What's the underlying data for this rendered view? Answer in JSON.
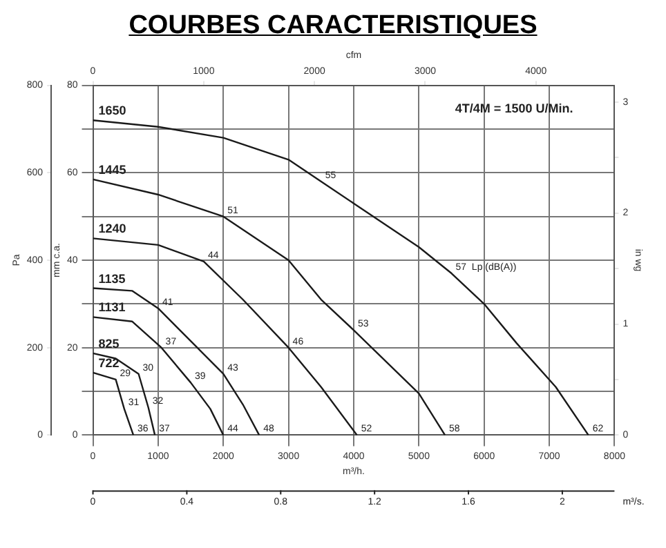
{
  "chart_data": {
    "type": "line",
    "title": "COURBES CARACTERISTIQUES",
    "xlabel": "m³/h.",
    "ylabel": "mm c.a.",
    "y2label": "Pa",
    "y3label": "in wg",
    "x2label": "cfm",
    "xlim": [
      0,
      8000
    ],
    "xticks": [
      0,
      1000,
      2000,
      3000,
      4000,
      5000,
      6000,
      7000,
      8000
    ],
    "ylim": [
      0,
      80
    ],
    "yticks": [
      0,
      {
        "value": 10,
        "label": null
      },
      20,
      {
        "value": 30,
        "label": null
      },
      40,
      {
        "value": 50,
        "label": null
      },
      60,
      {
        "value": 70,
        "label": null
      },
      80
    ],
    "y2lim": [
      0,
      800
    ],
    "y2ticks": [
      0,
      200,
      400,
      600,
      800
    ],
    "y3lim": [
      0,
      3.15
    ],
    "y3ticks": [
      0,
      {
        "value": 0.5,
        "label": null
      },
      1,
      {
        "value": 1.5,
        "label": null
      },
      2,
      {
        "value": 2.5,
        "label": null
      },
      3
    ],
    "x2lim": [
      0,
      4709
    ],
    "x2ticks": [
      0,
      1000,
      2000,
      3000,
      4000
    ],
    "grid": true,
    "legend": false,
    "marker": "none",
    "line_style": "solid",
    "series": [
      {
        "name": "1650",
        "color": "#1a1a1a",
        "x": [
          0,
          1000,
          2000,
          3000,
          3500,
          4000,
          5000,
          5500,
          6000,
          6500,
          7100,
          7600
        ],
        "values": [
          72,
          70.5,
          68,
          63,
          58,
          53,
          43,
          37,
          30,
          21,
          11,
          0
        ]
      },
      {
        "name": "1445",
        "color": "#1a1a1a",
        "x": [
          0,
          1000,
          2000,
          3000,
          3500,
          4000,
          5000,
          5400
        ],
        "values": [
          58.5,
          55,
          50,
          40,
          31,
          24,
          9.5,
          0
        ]
      },
      {
        "name": "1240",
        "color": "#1a1a1a",
        "x": [
          0,
          1000,
          1700,
          2300,
          3000,
          3500,
          4050
        ],
        "values": [
          45,
          43.5,
          39.7,
          31,
          20,
          11,
          0
        ]
      },
      {
        "name": "1135",
        "color": "#1a1a1a",
        "x": [
          0,
          600,
          1000,
          1600,
          2000,
          2300,
          2550
        ],
        "values": [
          33.6,
          33,
          29,
          20,
          14,
          7,
          0
        ]
      },
      {
        "name": "1131",
        "color": "#1a1a1a",
        "x": [
          0,
          600,
          1050,
          1500,
          1800,
          2000
        ],
        "values": [
          27,
          26,
          20,
          12,
          6,
          0
        ]
      },
      {
        "name": "825",
        "color": "#1a1a1a",
        "x": [
          0,
          350,
          700,
          850,
          950
        ],
        "values": [
          18.7,
          17.5,
          14,
          6.3,
          0
        ]
      },
      {
        "name": "722",
        "color": "#1a1a1a",
        "x": [
          0,
          350,
          480,
          620
        ],
        "values": [
          14.3,
          12.7,
          6,
          0
        ]
      }
    ],
    "annotations": [
      "4T/4M = 1500 U/Min.",
      "0",
      "0.4",
      "0.8",
      "1.2",
      "1.6",
      "2",
      "m³/s.",
      {
        "text": "55",
        "x": 3500,
        "y": 58
      },
      {
        "text": "57  Lp (dB(A))",
        "x": 5500,
        "y": 37
      },
      {
        "text": "62",
        "x": 7600,
        "y": 0
      },
      {
        "text": "51",
        "x": 2000,
        "y": 50
      },
      {
        "text": "53",
        "x": 4000,
        "y": 24
      },
      {
        "text": "58",
        "x": 5400,
        "y": 0
      },
      {
        "text": "44",
        "x": 1700,
        "y": 39.7
      },
      {
        "text": "46",
        "x": 3000,
        "y": 20
      },
      {
        "text": "52",
        "x": 4050,
        "y": 0
      },
      {
        "text": "41",
        "x": 1000,
        "y": 29
      },
      {
        "text": "43",
        "x": 2000,
        "y": 14
      },
      {
        "text": "48",
        "x": 2550,
        "y": 0
      },
      {
        "text": "37",
        "x": 1050,
        "y": 20
      },
      {
        "text": "39",
        "x": 1500,
        "y": 12
      },
      {
        "text": "44",
        "x": 2000,
        "y": 0
      },
      {
        "text": "30",
        "x": 700,
        "y": 14
      },
      {
        "text": "32",
        "x": 850,
        "y": 6.3
      },
      {
        "text": "37",
        "x": 950,
        "y": 0
      },
      {
        "text": "29",
        "x": 350,
        "y": 12.7
      },
      {
        "text": "31",
        "x": 480,
        "y": 6
      },
      {
        "text": "36",
        "x": 620,
        "y": 0
      }
    ]
  }
}
